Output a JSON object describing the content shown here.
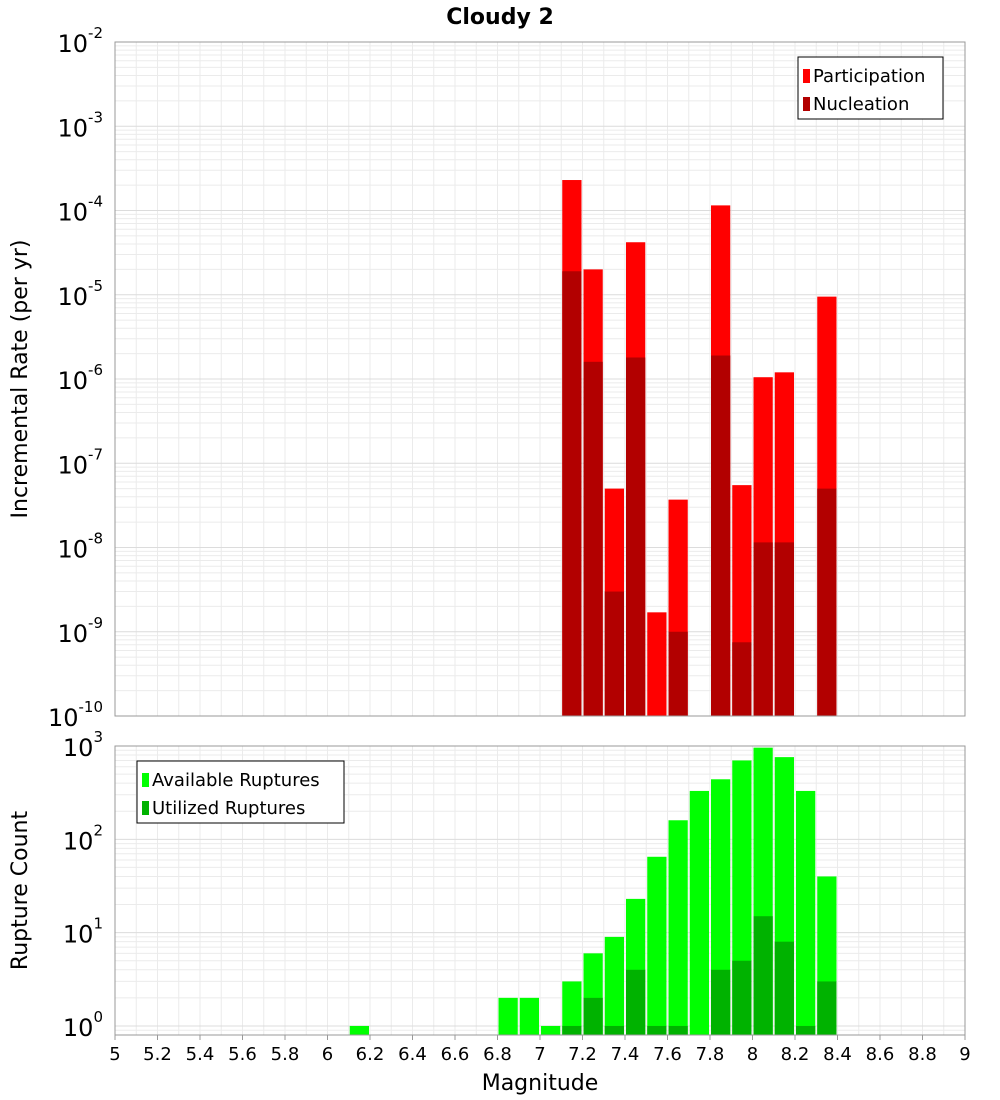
{
  "chart_data": [
    {
      "type": "bar",
      "title": "Cloudy 2",
      "xlabel": "",
      "ylabel": "Incremental Rate (per yr)",
      "yscale": "log",
      "ylim": [
        1e-10,
        0.01
      ],
      "xlim": [
        5,
        9
      ],
      "grid": true,
      "legend_position": "top-right",
      "y_ticks": [
        {
          "base": "10",
          "exp": "-10"
        },
        {
          "base": "10",
          "exp": "-9"
        },
        {
          "base": "10",
          "exp": "-8"
        },
        {
          "base": "10",
          "exp": "-7"
        },
        {
          "base": "10",
          "exp": "-6"
        },
        {
          "base": "10",
          "exp": "-5"
        },
        {
          "base": "10",
          "exp": "-4"
        },
        {
          "base": "10",
          "exp": "-3"
        },
        {
          "base": "10",
          "exp": "-2"
        }
      ],
      "series": [
        {
          "name": "Participation",
          "color": "#ff0000",
          "x": [
            7.15,
            7.25,
            7.35,
            7.45,
            7.55,
            7.65,
            7.85,
            7.95,
            8.05,
            8.15,
            8.35
          ],
          "values": [
            0.00023,
            2e-05,
            5e-08,
            4.2e-05,
            1.7e-09,
            3.7e-08,
            0.000115,
            5.5e-08,
            1.05e-06,
            1.2e-06,
            9.5e-06
          ]
        },
        {
          "name": "Nucleation",
          "color": "#b20000",
          "x": [
            7.15,
            7.25,
            7.35,
            7.45,
            7.65,
            7.85,
            7.95,
            8.05,
            8.15,
            8.35
          ],
          "values": [
            1.9e-05,
            1.6e-06,
            3e-09,
            1.8e-06,
            1e-09,
            1.9e-06,
            7.5e-10,
            1.15e-08,
            1.15e-08,
            5e-08
          ]
        }
      ]
    },
    {
      "type": "bar",
      "title": "",
      "xlabel": "Magnitude",
      "ylabel": "Rupture Count",
      "yscale": "log",
      "ylim": [
        0.8,
        1000
      ],
      "xlim": [
        5,
        9
      ],
      "grid": true,
      "legend_position": "top-left",
      "x_ticks": [
        "5",
        "5.2",
        "5.4",
        "5.6",
        "5.8",
        "6",
        "6.2",
        "6.4",
        "6.6",
        "6.8",
        "7",
        "7.2",
        "7.4",
        "7.6",
        "7.8",
        "8",
        "8.2",
        "8.4",
        "8.6",
        "8.8",
        "9"
      ],
      "y_ticks": [
        {
          "base": "10",
          "exp": "0"
        },
        {
          "base": "10",
          "exp": "1"
        },
        {
          "base": "10",
          "exp": "2"
        },
        {
          "base": "10",
          "exp": "3"
        }
      ],
      "series": [
        {
          "name": "Available Ruptures",
          "color": "#00ff00",
          "x": [
            6.15,
            6.85,
            6.95,
            7.05,
            7.15,
            7.25,
            7.35,
            7.45,
            7.55,
            7.65,
            7.75,
            7.85,
            7.95,
            8.05,
            8.15,
            8.25,
            8.35
          ],
          "values": [
            1,
            2,
            2,
            1,
            3,
            6,
            9,
            23,
            65,
            160,
            330,
            440,
            700,
            960,
            760,
            330,
            40
          ]
        },
        {
          "name": "Utilized Ruptures",
          "color": "#00b200",
          "x": [
            7.15,
            7.25,
            7.35,
            7.45,
            7.55,
            7.65,
            7.85,
            7.95,
            8.05,
            8.15,
            8.25,
            8.35
          ],
          "values": [
            1,
            2,
            1,
            4,
            1,
            1,
            4,
            5,
            15,
            8,
            1,
            3
          ]
        }
      ]
    }
  ]
}
